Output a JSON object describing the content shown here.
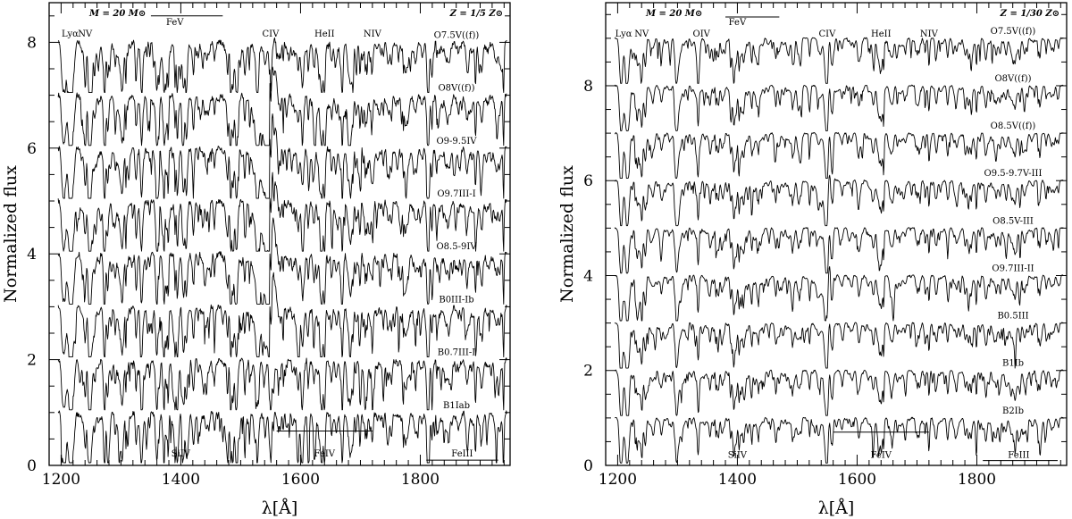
{
  "chart_data": [
    {
      "type": "line",
      "panel": "left",
      "mass_note": "M = 20 M⊙",
      "metallicity_note": "Z = 1/5 Z⊙",
      "xlabel": "λ[Å]",
      "ylabel": "Normalized flux",
      "xlim": [
        1180,
        1950
      ],
      "ylim": [
        0,
        8.75
      ],
      "xticks": [
        "1200",
        "1400",
        "1600",
        "1800"
      ],
      "xtick_values": [
        1200,
        1400,
        1600,
        1800
      ],
      "yticks": [
        "0",
        "2",
        "4",
        "6",
        "8"
      ],
      "ytick_values": [
        0,
        2,
        4,
        6,
        8
      ],
      "series": [
        {
          "name": "O7.5V((f))",
          "offset": 8,
          "wind": 0.15
        },
        {
          "name": "O8V((f))",
          "offset": 7,
          "wind": 1.0
        },
        {
          "name": "O9-9.5IV",
          "offset": 6,
          "wind": 0.9
        },
        {
          "name": "O9.7III-I",
          "offset": 5,
          "wind": 0.85
        },
        {
          "name": "O8.5-9IV",
          "offset": 4,
          "wind": 0.8
        },
        {
          "name": "B0III-Ib",
          "offset": 3,
          "wind": 0.75
        },
        {
          "name": "B0.7III-I",
          "offset": 2,
          "wind": 0.1
        },
        {
          "name": "B1Iab",
          "offset": 1,
          "wind": 0.08
        }
      ],
      "line_ids_top": [
        {
          "label": "Lyα",
          "x": 1215
        },
        {
          "label": "NV",
          "x": 1240
        },
        {
          "label": "FeV",
          "x": 1390
        },
        {
          "label": "CIV",
          "x": 1550
        },
        {
          "label": "HeII",
          "x": 1640
        },
        {
          "label": "NIV",
          "x": 1720
        }
      ],
      "line_ids_bottom": [
        {
          "label": "SiIV",
          "x": 1400
        },
        {
          "label": "FeIV",
          "x": 1640
        },
        {
          "label": "FeIII",
          "x": 1870
        }
      ],
      "bars": [
        {
          "name": "FeV",
          "x1": 1350,
          "x2": 1470,
          "y": 8.5
        },
        {
          "name": "FeIV",
          "x1": 1560,
          "x2": 1720,
          "y": 0.65
        },
        {
          "name": "FeIII",
          "x1": 1810,
          "x2": 1930,
          "y": 0.1
        }
      ]
    },
    {
      "type": "line",
      "panel": "right",
      "mass_note": "M = 20 M⊙",
      "metallicity_note": "Z = 1/30 Z⊙",
      "xlabel": "λ[Å]",
      "ylabel": "Normalized flux",
      "xlim": [
        1180,
        1950
      ],
      "ylim": [
        0,
        9.75
      ],
      "xticks": [
        "1200",
        "1400",
        "1600",
        "1800"
      ],
      "xtick_values": [
        1200,
        1400,
        1600,
        1800
      ],
      "yticks": [
        "0",
        "2",
        "4",
        "6",
        "8"
      ],
      "ytick_values": [
        0,
        2,
        4,
        6,
        8
      ],
      "series": [
        {
          "name": "O7.5V((f))",
          "offset": 9,
          "wind": 0
        },
        {
          "name": "O8V((f))",
          "offset": 8,
          "wind": 0
        },
        {
          "name": "O8.5V((f))",
          "offset": 7,
          "wind": 0
        },
        {
          "name": "O9.5-9.7V-III",
          "offset": 6,
          "wind": 0.25
        },
        {
          "name": "O8.5V-III",
          "offset": 5,
          "wind": 0
        },
        {
          "name": "O9.7III-II",
          "offset": 4,
          "wind": 0.3
        },
        {
          "name": "B0.5III",
          "offset": 3,
          "wind": 0.05
        },
        {
          "name": "B1Ib",
          "offset": 2,
          "wind": 0
        },
        {
          "name": "B2Ib",
          "offset": 1,
          "wind": 0
        }
      ],
      "line_ids_top": [
        {
          "label": "Lyα",
          "x": 1210
        },
        {
          "label": "NV",
          "x": 1240
        },
        {
          "label": "OIV",
          "x": 1340
        },
        {
          "label": "FeV",
          "x": 1400
        },
        {
          "label": "CIV",
          "x": 1550
        },
        {
          "label": "HeII",
          "x": 1640
        },
        {
          "label": "NIV",
          "x": 1720
        }
      ],
      "line_ids_bottom": [
        {
          "label": "SiIV",
          "x": 1400
        },
        {
          "label": "FeIV",
          "x": 1640
        },
        {
          "label": "FeIII",
          "x": 1870
        }
      ],
      "bars": [
        {
          "name": "FeV",
          "x1": 1380,
          "x2": 1470,
          "y": 9.45
        },
        {
          "name": "FeIV",
          "x1": 1560,
          "x2": 1720,
          "y": 0.7
        },
        {
          "name": "FeIII",
          "x1": 1810,
          "x2": 1935,
          "y": 0.1
        }
      ]
    }
  ]
}
